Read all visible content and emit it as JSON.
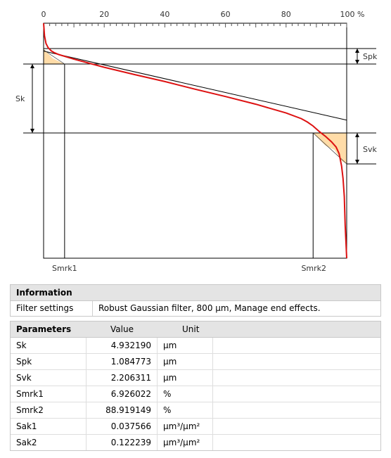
{
  "chart_data": {
    "type": "line",
    "x_unit_label": "100 %",
    "x_ticks": [
      "0",
      "20",
      "40",
      "60",
      "80"
    ],
    "xlim": [
      0,
      100
    ],
    "curve_pct": [
      0,
      0.3,
      0.8,
      1.5,
      2.5,
      3.5,
      5,
      6.926,
      10,
      20,
      30,
      40,
      50,
      60,
      70,
      80,
      85,
      87,
      88.919,
      91,
      93,
      95,
      96.5,
      97.5,
      98.3,
      98.8,
      99.2,
      99.5,
      100
    ],
    "curve_y": [
      0,
      -0.9,
      -1.45,
      -1.75,
      -1.97,
      -2.1,
      -2.24,
      -2.37,
      -2.57,
      -3.15,
      -3.67,
      -4.17,
      -4.72,
      -5.24,
      -5.79,
      -6.42,
      -6.82,
      -7.06,
      -7.35,
      -7.75,
      -8.09,
      -8.48,
      -8.85,
      -9.32,
      -10.2,
      -11.1,
      -12.4,
      -14.4,
      -16.8
    ],
    "equivalent_line": {
      "x": [
        0,
        100
      ],
      "y": [
        -1.995,
        -6.927
      ]
    },
    "markers": [
      {
        "label": "Spk"
      },
      {
        "label": "Sk"
      },
      {
        "label": "Svk"
      }
    ],
    "bottom_labels": [
      "Smrk1",
      "Smrk2"
    ]
  },
  "information": {
    "header": "Information",
    "rows": [
      {
        "key": "Filter settings",
        "value": "Robust Gaussian filter, 800 µm, Manage end effects."
      }
    ]
  },
  "parameters": {
    "header": [
      "Parameters",
      "Value",
      "Unit"
    ],
    "rows": [
      {
        "name": "Sk",
        "value": "4.932190",
        "unit": "µm"
      },
      {
        "name": "Spk",
        "value": "1.084773",
        "unit": "µm"
      },
      {
        "name": "Svk",
        "value": "2.206311",
        "unit": "µm"
      },
      {
        "name": "Smrk1",
        "value": "6.926022",
        "unit": "%"
      },
      {
        "name": "Smrk2",
        "value": "88.919149",
        "unit": "%"
      },
      {
        "name": "Sak1",
        "value": "0.037566",
        "unit": "µm³/µm²"
      },
      {
        "name": "Sak2",
        "value": "0.122239",
        "unit": "µm³/µm²"
      }
    ]
  },
  "colors": {
    "curve": "#dd1111",
    "fill": "#ffdca8",
    "header_bg": "#e4e4e4"
  }
}
